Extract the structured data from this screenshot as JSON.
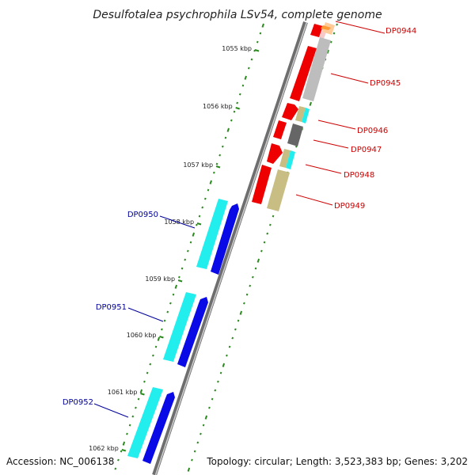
{
  "title": "Desulfotalea psychrophila LSv54, complete genome",
  "footer": {
    "accession": "Accession: NC_006138",
    "summary": "Topology: circular; Length: 3,523,383 bp; Genes: 3,202"
  },
  "ticks": [
    "1055 kbp",
    "1056 kbp",
    "1057 kbp",
    "1058 kbp",
    "1059 kbp",
    "1060 kbp",
    "1061 kbp",
    "1062 kbp"
  ],
  "genes_right": [
    "DP0944",
    "DP0945",
    "DP0946",
    "DP0947",
    "DP0948",
    "DP0949"
  ],
  "genes_left": [
    "DP0950",
    "DP0951",
    "DP0952"
  ],
  "colors": {
    "backbone": "#8c8c8c",
    "tick": "#2a8a1e",
    "red_feature": "#ee0000",
    "blue_feature": "#0a0ae6",
    "cyan_feature": "#22eeee",
    "gray_feature": "#bdbdbd",
    "dark_gray_feature": "#666666",
    "khaki_feature": "#c8bd82",
    "orange_feature": "#ff9933",
    "right_label": "#cc0000",
    "left_label": "#000099"
  }
}
